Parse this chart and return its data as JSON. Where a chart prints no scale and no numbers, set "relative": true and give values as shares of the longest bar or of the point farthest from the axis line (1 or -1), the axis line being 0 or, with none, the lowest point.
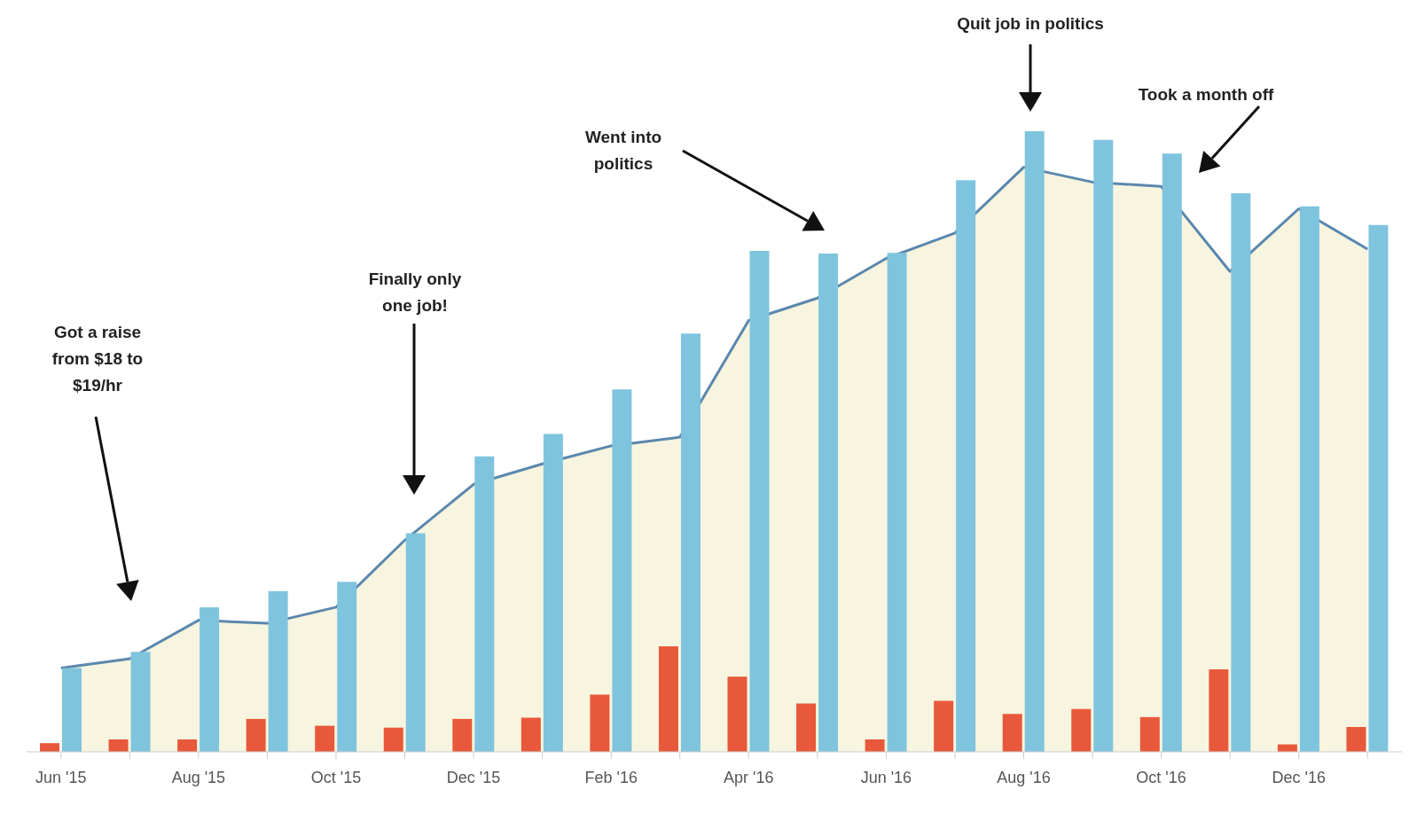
{
  "chart_data": {
    "type": "bar",
    "relative": true,
    "categories": [
      "Jun '15",
      null,
      "Aug '15",
      null,
      "Oct '15",
      null,
      "Dec '15",
      null,
      "Feb '16",
      null,
      "Apr '16",
      null,
      "Jun '16",
      null,
      "Aug '16",
      null,
      "Oct '16",
      null,
      "Dec '16",
      null
    ],
    "series": [
      {
        "color": "#e8583a",
        "values": [
          0.014,
          0.02,
          0.02,
          0.053,
          0.042,
          0.039,
          0.053,
          0.055,
          0.092,
          0.17,
          0.121,
          0.078,
          0.02,
          0.082,
          0.061,
          0.069,
          0.056,
          0.133,
          0.012,
          0.04
        ]
      },
      {
        "color": "#7fc4de",
        "values": [
          0.135,
          0.161,
          0.233,
          0.259,
          0.274,
          0.352,
          0.476,
          0.512,
          0.584,
          0.674,
          0.807,
          0.803,
          0.804,
          0.921,
          1,
          0.986,
          0.964,
          0.9,
          0.879,
          0.849
        ]
      },
      {
        "type": "area",
        "color": "#5b87ad",
        "values": [
          0.135,
          0.15,
          0.212,
          0.207,
          0.233,
          0.341,
          0.431,
          0.464,
          0.493,
          0.507,
          0.695,
          0.731,
          0.795,
          0.836,
          0.942,
          0.918,
          0.911,
          0.774,
          0.875,
          0.81
        ]
      }
    ],
    "annotations": [
      "Got a raise from $18 to $19/hr",
      "Finally only one job!",
      "Went into politics",
      "Quit job in politics",
      "Took a month off"
    ],
    "grid": false,
    "legend": false
  }
}
